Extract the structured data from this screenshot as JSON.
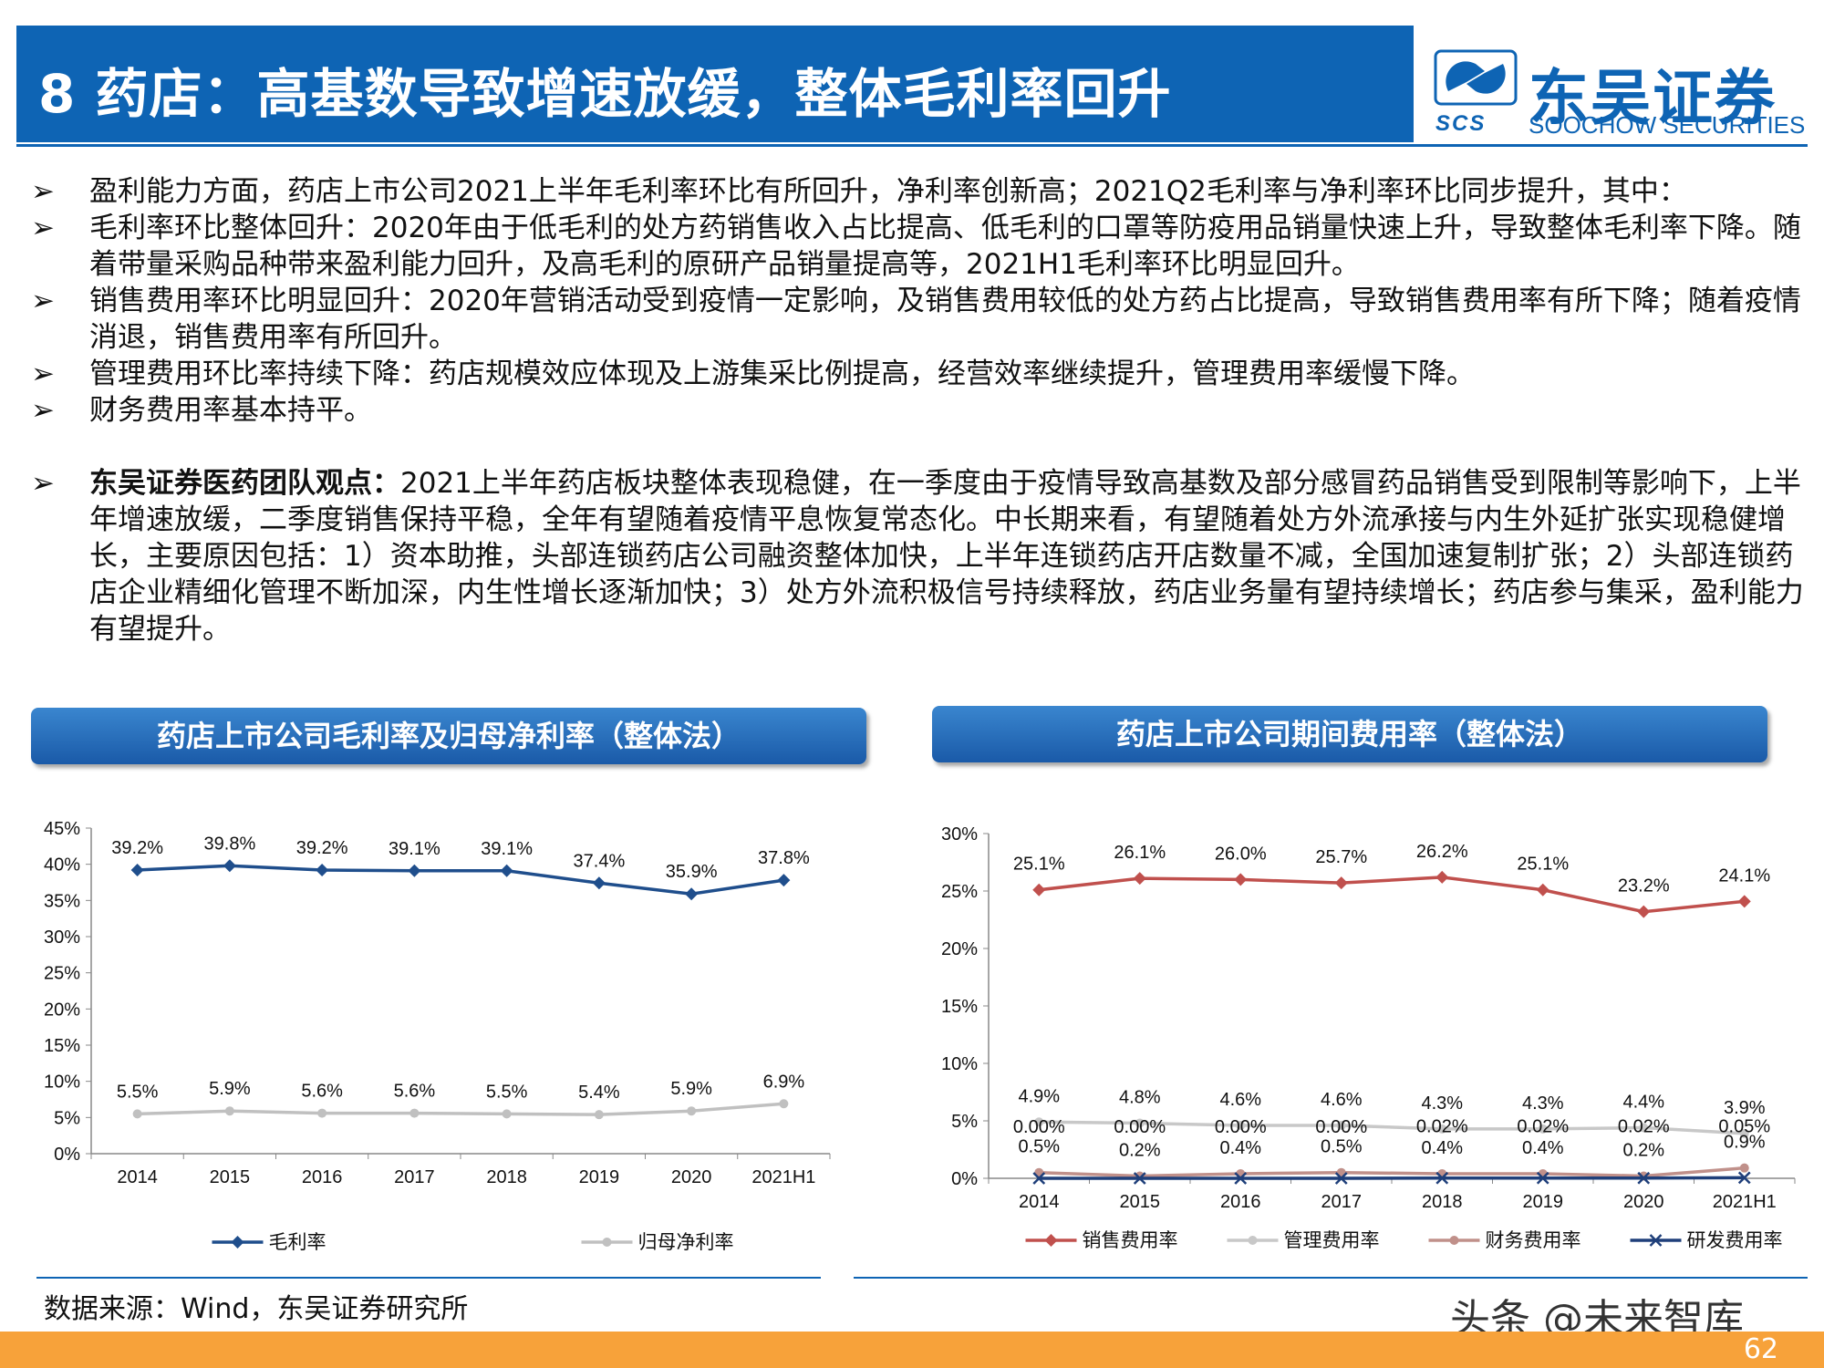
{
  "header": {
    "title": "8 药店：高基数导致增速放缓，整体毛利率回升",
    "logo_cn": "东吴证券",
    "logo_en": "SOOCHOW SECURITIES",
    "logo_abbr": "SCS"
  },
  "bullets": [
    {
      "arrow": "➢",
      "lead": "",
      "text": "盈利能力方面，药店上市公司2021上半年毛利率环比有所回升，净利率创新高；2021Q2毛利率与净利率环比同步提升，其中："
    },
    {
      "arrow": "➢",
      "lead": "",
      "text": "毛利率环比整体回升：2020年由于低毛利的处方药销售收入占比提高、低毛利的口罩等防疫用品销量快速上升，导致整体毛利率下降。随着带量采购品种带来盈利能力回升，及高毛利的原研产品销量提高等，2021H1毛利率环比明显回升。"
    },
    {
      "arrow": "➢",
      "lead": "",
      "text": "销售费用率环比明显回升：2020年营销活动受到疫情一定影响，及销售费用较低的处方药占比提高，导致销售费用率有所下降；随着疫情消退，销售费用率有所回升。"
    },
    {
      "arrow": "➢",
      "lead": "",
      "text": "管理费用环比率持续下降：药店规模效应体现及上游集采比例提高，经营效率继续提升，管理费用率缓慢下降。"
    },
    {
      "arrow": "➢",
      "lead": "",
      "text": "财务费用率基本持平。"
    },
    {
      "arrow": "➢",
      "lead": "东吴证券医药团队观点：",
      "text": "2021上半年药店板块整体表现稳健，在一季度由于疫情导致高基数及部分感冒药品销售受到限制等影响下，上半年增速放缓，二季度销售保持平稳，全年有望随着疫情平息恢复常态化。中长期来看，有望随着处方外流承接与内生外延扩张实现稳健增长，主要原因包括：1）资本助推，头部连锁药店公司融资整体加快，上半年连锁药店开店数量不减，全国加速复制扩张；2）头部连锁药店企业精细化管理不断加深，内生性增长逐渐加快；3）处方外流积极信号持续释放，药店业务量有望持续增长；药店参与集采，盈利能力有望提升。"
    }
  ],
  "panels": {
    "left_title": "药店上市公司毛利率及归母净利率（整体法）",
    "right_title": "药店上市公司期间费用率（整体法）"
  },
  "chart_data": [
    {
      "type": "line",
      "title": "药店上市公司毛利率及归母净利率（整体法）",
      "categories": [
        "2014",
        "2015",
        "2016",
        "2017",
        "2018",
        "2019",
        "2020",
        "2021H1"
      ],
      "y_ticks": [
        "0%",
        "5%",
        "10%",
        "15%",
        "20%",
        "25%",
        "30%",
        "35%",
        "40%",
        "45%"
      ],
      "ylim": [
        0,
        45
      ],
      "legend_position": "bottom",
      "series": [
        {
          "name": "毛利率",
          "color": "#1f4e8c",
          "marker": "diamond",
          "values": [
            39.2,
            39.8,
            39.2,
            39.1,
            39.1,
            37.4,
            35.9,
            37.8
          ],
          "labels": [
            "39.2%",
            "39.8%",
            "39.2%",
            "39.1%",
            "39.1%",
            "37.4%",
            "35.9%",
            "37.8%"
          ]
        },
        {
          "name": "归母净利率",
          "color": "#c0c0c0",
          "marker": "circle",
          "values": [
            5.5,
            5.9,
            5.6,
            5.6,
            5.5,
            5.4,
            5.9,
            6.9
          ],
          "labels": [
            "5.5%",
            "5.9%",
            "5.6%",
            "5.6%",
            "5.5%",
            "5.4%",
            "5.9%",
            "6.9%"
          ]
        }
      ]
    },
    {
      "type": "line",
      "title": "药店上市公司期间费用率（整体法）",
      "categories": [
        "2014",
        "2015",
        "2016",
        "2017",
        "2018",
        "2019",
        "2020",
        "2021H1"
      ],
      "y_ticks": [
        "0%",
        "5%",
        "10%",
        "15%",
        "20%",
        "25%",
        "30%"
      ],
      "ylim": [
        0,
        30
      ],
      "legend_position": "bottom",
      "series": [
        {
          "name": "销售费用率",
          "color": "#c0504d",
          "marker": "diamond",
          "values": [
            25.1,
            26.1,
            26.0,
            25.7,
            26.2,
            25.1,
            23.2,
            24.1
          ],
          "labels": [
            "25.1%",
            "26.1%",
            "26.0%",
            "25.7%",
            "26.2%",
            "25.1%",
            "23.2%",
            "24.1%"
          ]
        },
        {
          "name": "管理费用率",
          "color": "#c8c8c8",
          "marker": "circle",
          "values": [
            4.9,
            4.8,
            4.6,
            4.6,
            4.3,
            4.3,
            4.4,
            3.9
          ],
          "labels": [
            "4.9%",
            "4.8%",
            "4.6%",
            "4.6%",
            "4.3%",
            "4.3%",
            "4.4%",
            "3.9%"
          ]
        },
        {
          "name": "财务费用率",
          "color": "#c0908a",
          "marker": "circle",
          "values": [
            0.5,
            0.2,
            0.4,
            0.5,
            0.4,
            0.4,
            0.2,
            0.9
          ],
          "labels": [
            "0.5%",
            "0.2%",
            "0.4%",
            "0.5%",
            "0.4%",
            "0.4%",
            "0.2%",
            "0.9%"
          ]
        },
        {
          "name": "研发费用率",
          "color": "#1f3f7a",
          "marker": "x",
          "values": [
            0.0,
            0.0,
            0.0,
            0.0,
            0.02,
            0.02,
            0.02,
            0.05
          ],
          "labels": [
            "0.00%",
            "0.00%",
            "0.00%",
            "0.00%",
            "0.02%",
            "0.02%",
            "0.02%",
            "0.05%"
          ]
        }
      ]
    }
  ],
  "footer": {
    "source": "数据来源：Wind，东吴证券研究所",
    "watermark": "头条 @未来智库",
    "page": "62"
  }
}
